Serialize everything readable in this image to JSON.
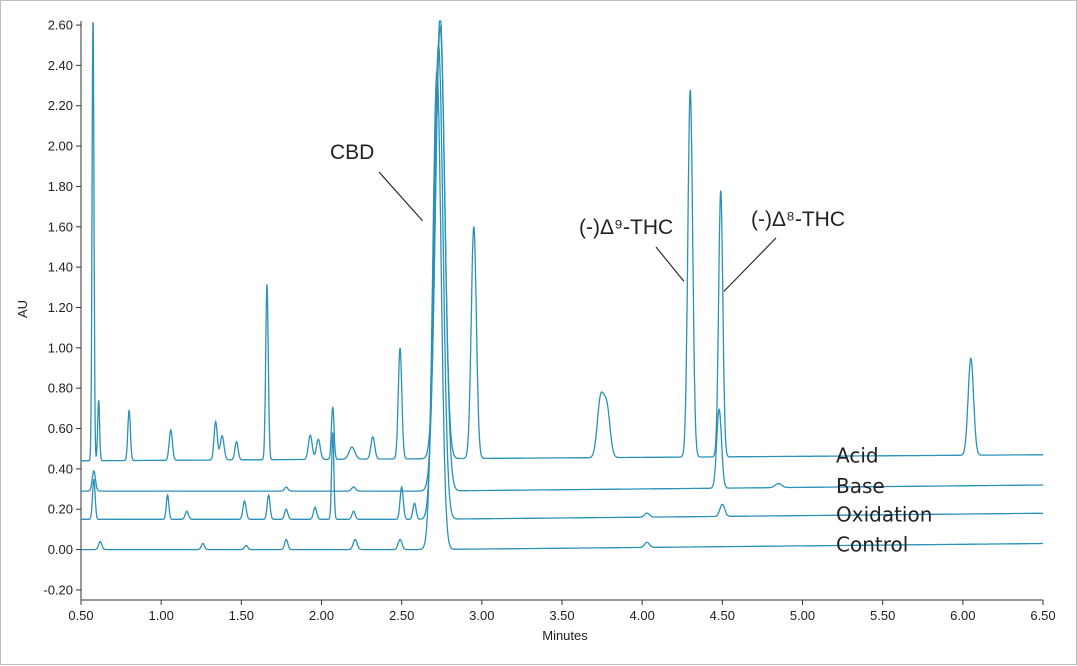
{
  "chart_data": {
    "type": "line",
    "xlabel": "Minutes",
    "ylabel": "AU",
    "xlim": [
      0.5,
      6.5
    ],
    "ylim": [
      -0.25,
      2.62
    ],
    "x_ticks": [
      "0.50",
      "1.00",
      "1.50",
      "2.00",
      "2.50",
      "3.00",
      "3.50",
      "4.00",
      "4.50",
      "5.00",
      "5.50",
      "6.00",
      "6.50"
    ],
    "y_ticks": [
      "-0.20",
      "0.00",
      "0.20",
      "0.40",
      "0.60",
      "0.80",
      "1.00",
      "1.20",
      "1.40",
      "1.60",
      "1.80",
      "2.00",
      "2.20",
      "2.40",
      "2.60"
    ],
    "grid": false,
    "line_color": "#2a91b8",
    "series": [
      {
        "name": "Acid",
        "baseline": [
          [
            0.5,
            0.44
          ],
          [
            2.65,
            0.45
          ],
          [
            6.5,
            0.47
          ]
        ],
        "peaks": [
          [
            0.575,
            2.2,
            0.006
          ],
          [
            0.61,
            0.3,
            0.006
          ],
          [
            0.8,
            0.25,
            0.008
          ],
          [
            1.06,
            0.15,
            0.01
          ],
          [
            1.34,
            0.19,
            0.01
          ],
          [
            1.38,
            0.12,
            0.012
          ],
          [
            1.47,
            0.09,
            0.01
          ],
          [
            1.66,
            0.87,
            0.008
          ],
          [
            1.93,
            0.12,
            0.012
          ],
          [
            1.98,
            0.1,
            0.012
          ],
          [
            2.07,
            0.26,
            0.008
          ],
          [
            2.19,
            0.06,
            0.018
          ],
          [
            2.32,
            0.11,
            0.012
          ],
          [
            2.49,
            0.55,
            0.011
          ],
          [
            2.74,
            2.2,
            0.028
          ],
          [
            2.95,
            1.15,
            0.016
          ],
          [
            3.74,
            0.28,
            0.02
          ],
          [
            3.78,
            0.24,
            0.02
          ],
          [
            4.3,
            1.82,
            0.015
          ],
          [
            4.49,
            1.32,
            0.013
          ],
          [
            6.05,
            0.48,
            0.017
          ]
        ]
      },
      {
        "name": "Base",
        "baseline": [
          [
            0.5,
            0.29
          ],
          [
            2.65,
            0.29
          ],
          [
            6.5,
            0.32
          ]
        ],
        "peaks": [
          [
            0.58,
            0.1,
            0.01
          ],
          [
            1.78,
            0.02,
            0.01
          ],
          [
            2.2,
            0.02,
            0.012
          ],
          [
            2.74,
            2.3,
            0.03
          ],
          [
            4.48,
            0.39,
            0.015
          ],
          [
            4.85,
            0.02,
            0.02
          ]
        ]
      },
      {
        "name": "Oxidation",
        "baseline": [
          [
            0.5,
            0.15
          ],
          [
            2.65,
            0.15
          ],
          [
            6.5,
            0.18
          ]
        ],
        "peaks": [
          [
            0.58,
            0.2,
            0.008
          ],
          [
            1.04,
            0.12,
            0.008
          ],
          [
            1.16,
            0.04,
            0.01
          ],
          [
            1.52,
            0.09,
            0.01
          ],
          [
            1.67,
            0.12,
            0.009
          ],
          [
            1.78,
            0.05,
            0.01
          ],
          [
            1.96,
            0.06,
            0.01
          ],
          [
            2.07,
            0.43,
            0.007
          ],
          [
            2.2,
            0.04,
            0.01
          ],
          [
            2.5,
            0.16,
            0.01
          ],
          [
            2.58,
            0.08,
            0.01
          ],
          [
            2.73,
            2.35,
            0.028
          ],
          [
            4.03,
            0.02,
            0.015
          ],
          [
            4.5,
            0.06,
            0.015
          ]
        ]
      },
      {
        "name": "Control",
        "baseline": [
          [
            0.5,
            0.0
          ],
          [
            2.65,
            0.0
          ],
          [
            6.5,
            0.03
          ]
        ],
        "peaks": [
          [
            0.62,
            0.04,
            0.01
          ],
          [
            1.26,
            0.03,
            0.01
          ],
          [
            1.53,
            0.02,
            0.01
          ],
          [
            1.78,
            0.05,
            0.01
          ],
          [
            2.21,
            0.05,
            0.012
          ],
          [
            2.49,
            0.05,
            0.012
          ],
          [
            2.72,
            2.37,
            0.026
          ],
          [
            4.03,
            0.025,
            0.015
          ]
        ]
      }
    ],
    "annotations": [
      {
        "text": "CBD",
        "x": 2.63,
        "y": 1.63
      },
      {
        "text": "(-)Δ⁹-THC",
        "x": 4.26,
        "y": 1.33
      },
      {
        "text": "(-)Δ⁸-THC",
        "x": 4.51,
        "y": 1.28
      }
    ]
  }
}
